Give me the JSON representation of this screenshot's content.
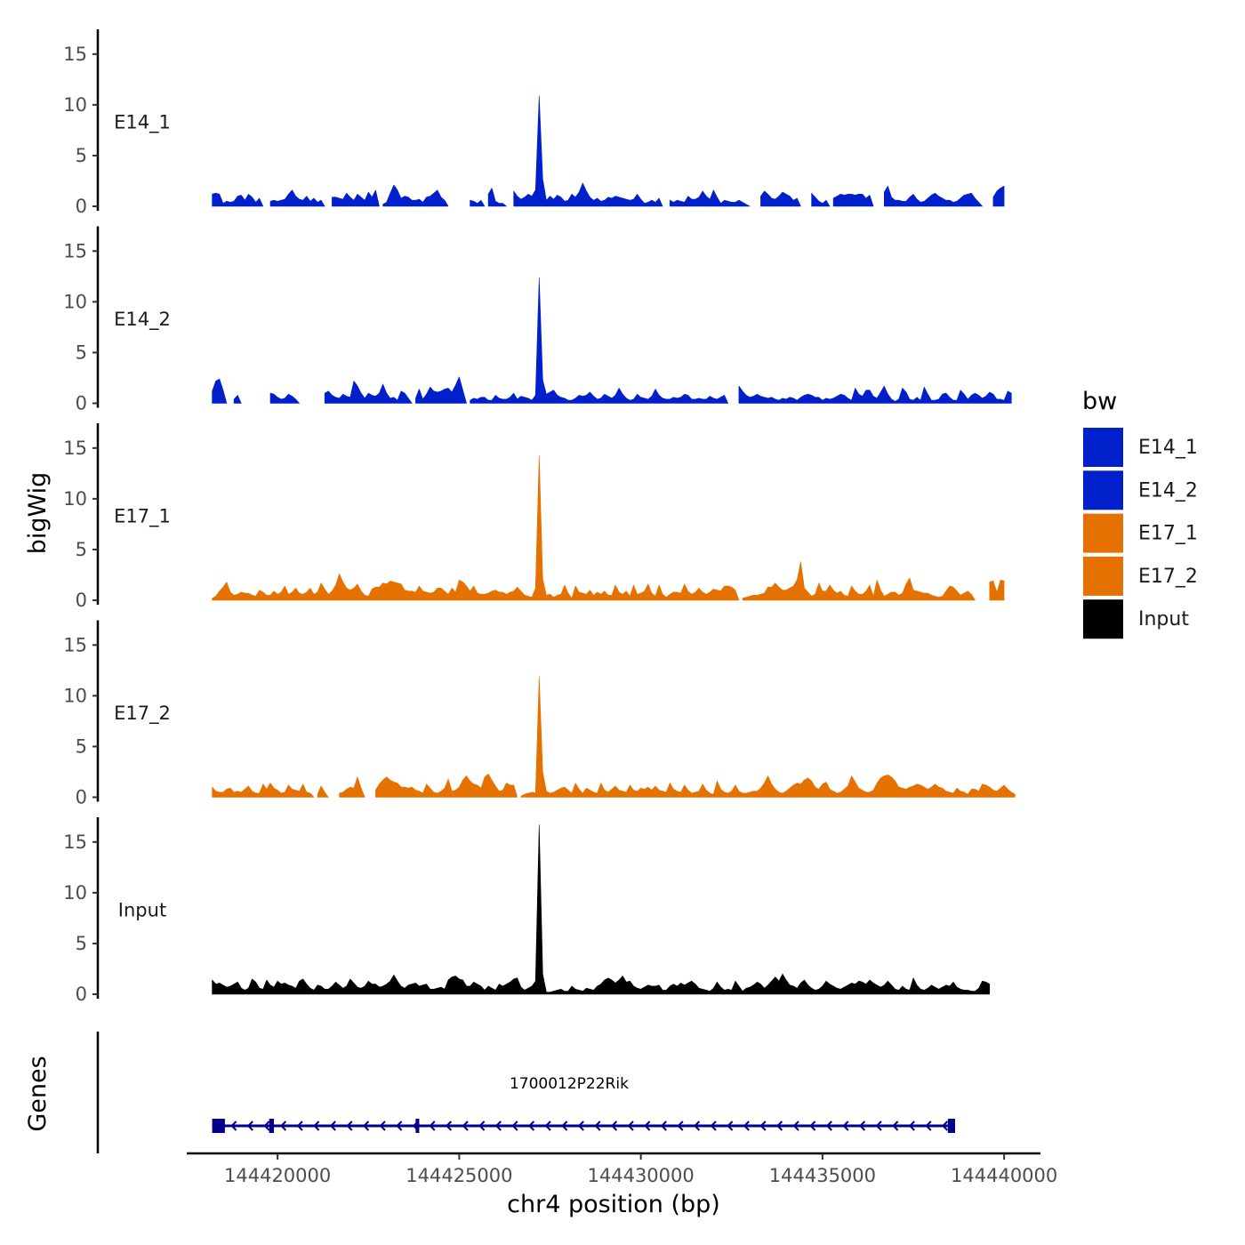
{
  "chart_data": {
    "type": "area",
    "title": "",
    "ylabel": "bigWig",
    "xlabel": "chr4 position (bp)",
    "genes_label": "Genes",
    "xlim": [
      144417500,
      144441000
    ],
    "ylim": [
      0,
      17
    ],
    "x_ticks": [
      144420000,
      144425000,
      144430000,
      144435000,
      144440000
    ],
    "x_tick_labels": [
      "144420000",
      "144425000",
      "144430000",
      "144435000",
      "144440000"
    ],
    "y_ticks": [
      0,
      5,
      10,
      15
    ],
    "y_tick_labels": [
      "0",
      "5",
      "10",
      "15"
    ],
    "x_start": 144418200,
    "bin_bp": 100,
    "series": [
      {
        "name": "E14_1",
        "color": "#0020CC",
        "peak_value": 10.9,
        "values": [
          1.2,
          1.3,
          1.2,
          0.3,
          0.5,
          0.4,
          0.5,
          1.0,
          1.1,
          0.6,
          1.2,
          0.9,
          0.4,
          0.8,
          0,
          0,
          0.5,
          0.6,
          0.5,
          0.6,
          0.7,
          1.2,
          1.6,
          1.0,
          0.7,
          0.6,
          1.0,
          0.5,
          0.8,
          0.4,
          0.6,
          0,
          0,
          0.9,
          0.9,
          0.8,
          0.7,
          1.3,
          0.9,
          0.6,
          1.2,
          0.9,
          0.6,
          1.4,
          0.9,
          1.6,
          0,
          0.2,
          0.4,
          1.3,
          2.1,
          1.6,
          0.8,
          1.0,
          0.9,
          0.6,
          0.6,
          0.7,
          0.4,
          0.9,
          1.0,
          1.3,
          1.6,
          0.9,
          0.6,
          0,
          0,
          0,
          0,
          0,
          0,
          0.6,
          0.5,
          0.3,
          0.6,
          0,
          1.2,
          1.8,
          0.5,
          0.3,
          0.3,
          0,
          0,
          1.5,
          1.0,
          0.7,
          0.9,
          1.2,
          1.0,
          1.6,
          10.9,
          2.7,
          0.6,
          1.0,
          0.7,
          1.1,
          0.9,
          0.5,
          0.6,
          1.2,
          0.9,
          1.4,
          2.3,
          1.5,
          0.9,
          0.6,
          0.8,
          0.5,
          0.6,
          0.9,
          0.8,
          1.0,
          0.9,
          0.8,
          0.7,
          0.6,
          0.7,
          1.2,
          0.7,
          0.3,
          0.4,
          0.6,
          0.4,
          0.8,
          0,
          0,
          0.6,
          0.4,
          0.6,
          0.5,
          0.4,
          1.0,
          0.7,
          0.7,
          0.9,
          1.5,
          1.0,
          0.7,
          1.6,
          0.9,
          0.3,
          0.6,
          0.5,
          0.4,
          0.4,
          0.6,
          0.4,
          0.2,
          0,
          0,
          0,
          1.0,
          1.5,
          1.2,
          0.8,
          0.7,
          1.0,
          1.4,
          1.2,
          1.0,
          0.6,
          0.8,
          0,
          0,
          0,
          1.3,
          0.9,
          0.5,
          0.3,
          0.6,
          0,
          0.8,
          1.0,
          1.2,
          1.1,
          1.2,
          1.2,
          1.1,
          1.2,
          1.2,
          0.8,
          1.1,
          0,
          0,
          0,
          1.4,
          2.0,
          0.9,
          0.6,
          0.6,
          0.5,
          0.5,
          0.9,
          1.2,
          0.7,
          0.4,
          0.5,
          0.8,
          1.1,
          1.3,
          1.0,
          0.8,
          0.6,
          0.6,
          0.4,
          0.5,
          0.8,
          1.1,
          1.2,
          1.3,
          0.8,
          0.4,
          0,
          0,
          0,
          0.9,
          1.5,
          1.8,
          2.0
        ]
      },
      {
        "name": "E14_2",
        "color": "#0020CC",
        "peak_value": 12.4,
        "values": [
          1.2,
          2.2,
          2.4,
          1.3,
          0,
          0,
          0.4,
          0.8,
          0,
          0,
          0,
          0,
          0,
          0,
          0,
          0,
          1.0,
          0.9,
          0.6,
          0.4,
          0.5,
          0.9,
          0.7,
          0.4,
          0,
          0,
          0,
          0,
          0,
          0,
          0,
          1.0,
          1.2,
          0.8,
          0.6,
          0.5,
          0.9,
          0.7,
          0.6,
          2.2,
          1.7,
          1.0,
          0.5,
          1.0,
          0.8,
          0.7,
          1.0,
          1.9,
          1.0,
          0.5,
          0.6,
          0.3,
          1.2,
          1.0,
          0.5,
          0,
          0.5,
          1.4,
          0.4,
          0.9,
          1.6,
          1.2,
          1.1,
          1.2,
          1.4,
          1.5,
          1.1,
          1.8,
          2.6,
          1.3,
          0,
          0.3,
          0.5,
          0.4,
          0.6,
          0.6,
          0.3,
          0.3,
          0.8,
          0.5,
          0.4,
          0.4,
          0.6,
          1.0,
          0.4,
          0.7,
          0.6,
          0.5,
          0.3,
          0.8,
          12.4,
          2.3,
          0.9,
          1.1,
          1.3,
          0.8,
          0.6,
          0.5,
          0.3,
          0.3,
          0.5,
          0.8,
          0.7,
          0.8,
          1.1,
          0.7,
          0.4,
          0.5,
          0.9,
          0.7,
          0.5,
          0.8,
          1.5,
          0.9,
          0.5,
          0.3,
          0.4,
          0.9,
          0.6,
          0.5,
          0.4,
          0.7,
          1.4,
          0.8,
          0.5,
          0.4,
          0.4,
          0.6,
          0.5,
          0.6,
          0.9,
          0.8,
          0.4,
          0.4,
          0.5,
          0.4,
          0.4,
          0.7,
          0.5,
          0.4,
          0.6,
          0.8,
          0,
          0,
          0,
          1.7,
          1.2,
          0.8,
          0.6,
          0.7,
          0.9,
          0.7,
          0.6,
          0.5,
          0.6,
          0.4,
          0.3,
          0.5,
          0.4,
          0.6,
          0.5,
          0.3,
          0.6,
          0.8,
          0.9,
          0.8,
          0.6,
          0.6,
          0.3,
          0.5,
          0.4,
          0.5,
          0.7,
          0.9,
          0.8,
          0.5,
          0.3,
          1.5,
          0.9,
          0.7,
          1.3,
          1.3,
          0.7,
          0.5,
          1.1,
          1.7,
          0.9,
          0.4,
          0.2,
          0.4,
          1.5,
          1.1,
          0.4,
          0.3,
          0.6,
          0.3,
          1.6,
          0.9,
          0.3,
          0.3,
          0.4,
          0.9,
          1.0,
          0.6,
          0.3,
          0.3,
          1.3,
          0.9,
          0.4,
          0.8,
          1.0,
          0.8,
          0.5,
          0.7,
          1.1,
          0.9,
          0.4,
          0.4,
          0.3,
          1.2,
          1.0
        ]
      },
      {
        "name": "E17_1",
        "color": "#E57200",
        "peak_value": 14.3,
        "values": [
          0.2,
          0.4,
          0.9,
          1.3,
          1.8,
          0.8,
          0.5,
          0.6,
          0.8,
          0.7,
          0.7,
          0.5,
          0.4,
          1.0,
          0.8,
          0.5,
          0.5,
          0.9,
          0.6,
          0.8,
          1.4,
          0.6,
          0.8,
          1.2,
          0.7,
          0.6,
          0.8,
          1.2,
          0.6,
          0.8,
          1.7,
          1.1,
          0.6,
          0.9,
          1.5,
          2.6,
          1.8,
          1.2,
          1.0,
          1.2,
          1.6,
          0.9,
          0.5,
          0.4,
          1.1,
          1.3,
          1.3,
          1.7,
          1.6,
          1.9,
          1.8,
          1.7,
          1.6,
          1.0,
          0.9,
          0.9,
          0.8,
          1.4,
          0.9,
          0.8,
          0.7,
          0.8,
          1.2,
          1.2,
          0.9,
          0.6,
          1.2,
          0.8,
          2.0,
          1.8,
          1.4,
          0.9,
          1.4,
          0.7,
          0.6,
          0.6,
          0.7,
          0.9,
          1.0,
          0.8,
          0.8,
          0.6,
          0.8,
          0.9,
          1.3,
          0.9,
          0.5,
          0.4,
          0.3,
          1.2,
          14.3,
          2.1,
          0.5,
          0.6,
          0.3,
          0.5,
          0.6,
          1.5,
          0.7,
          0.2,
          1.4,
          0.8,
          0.7,
          0.6,
          1.0,
          0.5,
          0.8,
          0.6,
          0.9,
          0.5,
          0.5,
          1.5,
          0.8,
          0.6,
          0.9,
          0.4,
          1.5,
          0.6,
          0.7,
          0.9,
          1.6,
          0.7,
          0.4,
          1.5,
          0.6,
          0.3,
          0.6,
          0.8,
          0.8,
          0.7,
          1.6,
          0.9,
          0.6,
          0.8,
          1.2,
          0.8,
          0.6,
          0.8,
          1.1,
          1.0,
          0.9,
          1.4,
          1.4,
          1.3,
          1.0,
          0,
          0.2,
          0.3,
          0.4,
          0.5,
          0.5,
          0.6,
          0.7,
          1.3,
          1.3,
          1.7,
          1.3,
          1.0,
          1.0,
          1.2,
          1.4,
          2.0,
          3.8,
          1.2,
          0.8,
          0.4,
          0.6,
          1.7,
          0.9,
          0.9,
          1.5,
          1.0,
          0.7,
          0.9,
          0.5,
          0.4,
          1.4,
          0.9,
          0.6,
          0.6,
          0.9,
          1.5,
          0.4,
          2.0,
          1.0,
          0.4,
          0.6,
          0.8,
          0.8,
          0.5,
          0.7,
          1.6,
          2.2,
          1.0,
          0.9,
          0.8,
          0.7,
          0.7,
          0.5,
          0.4,
          0.3,
          0.4,
          0.9,
          1.4,
          1.3,
          0.9,
          0.5,
          0.7,
          0.9,
          0.6,
          0,
          0,
          0,
          0,
          1.8,
          1.9,
          0.8,
          2.0,
          1.9
        ]
      },
      {
        "name": "E17_2",
        "color": "#E57200",
        "peak_value": 11.9,
        "values": [
          1.0,
          0.6,
          0.5,
          0.5,
          0.8,
          0.9,
          0.5,
          0.6,
          0.5,
          0.8,
          1.1,
          0.6,
          0.4,
          0.4,
          1.3,
          0.8,
          1.4,
          0.9,
          0.7,
          0.4,
          0.5,
          1.2,
          0.8,
          0.7,
          0.6,
          1.3,
          0.5,
          0.4,
          0,
          0.3,
          1.1,
          0.5,
          0,
          0,
          0,
          0.4,
          0.5,
          0.8,
          1.0,
          0.9,
          2.0,
          0.9,
          0,
          0,
          0,
          0.7,
          1.3,
          1.7,
          2.0,
          1.7,
          1.5,
          1.4,
          1.0,
          1.0,
          0.9,
          1.0,
          0.7,
          0.6,
          0.4,
          1.3,
          0.9,
          0.5,
          0.4,
          0.6,
          0.9,
          1.8,
          0.6,
          0.7,
          1.0,
          1.7,
          2.1,
          1.6,
          1.3,
          1.2,
          0.9,
          2.0,
          2.3,
          1.7,
          1.1,
          0.6,
          0.7,
          1.4,
          1.2,
          1.2,
          0,
          0.1,
          0.3,
          0.4,
          0.5,
          0.4,
          11.9,
          2.5,
          0.6,
          0.4,
          0.5,
          0.7,
          0.9,
          1.0,
          0.7,
          0.4,
          1.4,
          0.8,
          0.4,
          0.9,
          0.7,
          0.5,
          0.4,
          1.4,
          0.7,
          0.5,
          0.8,
          1.1,
          0.7,
          0.6,
          0.5,
          1.2,
          0.7,
          0.6,
          0.9,
          0.8,
          1.0,
          0.7,
          1.1,
          0.7,
          0.6,
          0.5,
          1.4,
          0.8,
          0.6,
          0.5,
          1.2,
          0.7,
          0.4,
          0.5,
          0.6,
          1.3,
          0.7,
          0.4,
          0.3,
          1.6,
          0.8,
          0.5,
          0.4,
          0.6,
          1.2,
          0.6,
          0.4,
          0.4,
          0.5,
          0.6,
          0.6,
          0.9,
          1.4,
          2.1,
          1.3,
          0.8,
          0.5,
          0.4,
          0.6,
          0.9,
          1.2,
          1.4,
          1.3,
          1.7,
          1.9,
          1.6,
          1.0,
          0.8,
          1.3,
          1.5,
          0.8,
          0.6,
          0.4,
          0.5,
          0.8,
          1.1,
          2.1,
          1.5,
          0.9,
          0.7,
          0.5,
          0.5,
          0.7,
          1.4,
          1.9,
          2.1,
          2.2,
          2.0,
          1.6,
          1.0,
          0.9,
          0.8,
          1.0,
          1.1,
          1.3,
          1.2,
          1.0,
          0.8,
          1.0,
          1.3,
          1.0,
          0.9,
          0.6,
          0.5,
          0.4,
          0.9,
          0.6,
          0.5,
          0.3,
          0.8,
          0.8,
          0.6,
          1.3,
          1.2,
          1.0,
          0.7,
          0.6,
          0.9,
          1.2,
          0.8,
          0.5,
          0.3
        ]
      },
      {
        "name": "Input",
        "color": "#000000",
        "peak_value": 16.7,
        "values": [
          1.4,
          1.0,
          1.1,
          0.9,
          0.7,
          0.8,
          1.0,
          1.2,
          0.6,
          0.4,
          0.6,
          1.5,
          1.2,
          0.6,
          0.5,
          1.4,
          0.9,
          0.7,
          1.3,
          1.0,
          1.1,
          0.9,
          0.8,
          0.6,
          1.3,
          1.5,
          1.0,
          0.6,
          0.4,
          0.9,
          0.8,
          0.5,
          0.5,
          0.8,
          1.2,
          0.9,
          0.6,
          0.8,
          1.5,
          1.1,
          0.7,
          0.6,
          0.8,
          1.3,
          1.0,
          1.0,
          0.7,
          0.8,
          1.0,
          1.3,
          1.9,
          1.3,
          0.8,
          0.6,
          0.9,
          1.0,
          1.1,
          0.8,
          0.9,
          1.0,
          0.5,
          0.5,
          0.6,
          0.7,
          0.5,
          1.4,
          1.7,
          1.8,
          1.5,
          1.4,
          0.8,
          0.8,
          1.2,
          1.0,
          0.8,
          0.4,
          0.8,
          0.6,
          0.4,
          1.0,
          0.8,
          1.0,
          1.2,
          1.5,
          1.6,
          0.7,
          0.4,
          0.6,
          0.8,
          1.3,
          16.7,
          2.0,
          0.2,
          0.2,
          0.3,
          0.4,
          0.5,
          0.3,
          0.3,
          0.8,
          0.5,
          0.4,
          0.3,
          0.6,
          0.5,
          0.4,
          0.8,
          1.0,
          1.4,
          1.6,
          1.4,
          1.1,
          1.4,
          1.8,
          1.2,
          1.3,
          0.8,
          0.6,
          0.5,
          0.7,
          0.9,
          0.8,
          0.8,
          0.9,
          0.4,
          0.4,
          0.8,
          1.0,
          0.8,
          1.1,
          0.9,
          1.1,
          1.3,
          1.0,
          0.6,
          0.5,
          0.4,
          0.3,
          0.6,
          1.2,
          0.7,
          0.4,
          0.5,
          0.4,
          1.3,
          0.8,
          0.3,
          0.6,
          0.7,
          0.9,
          1.2,
          1.0,
          0.6,
          0.9,
          1.3,
          1.7,
          1.3,
          2.0,
          1.4,
          0.9,
          0.8,
          0.6,
          1.1,
          1.4,
          0.9,
          0.6,
          0.4,
          0.5,
          0.8,
          1.3,
          1.0,
          0.8,
          0.6,
          0.5,
          0.7,
          0.9,
          1.1,
          1.0,
          1.3,
          1.2,
          1.0,
          1.4,
          1.1,
          0.9,
          0.7,
          0.9,
          1.3,
          0.9,
          0.5,
          0.4,
          0.8,
          0.5,
          0.4,
          1.6,
          0.9,
          0.5,
          0.4,
          0.6,
          0.9,
          0.7,
          0.5,
          0.7,
          0.9,
          0.8,
          1.2,
          0.7,
          0.5,
          0.4,
          0.4,
          0.3,
          0.3,
          0.6,
          1.3,
          1.2,
          1.0
        ]
      }
    ],
    "gene_track": {
      "gene_name": "1700012P22Rik",
      "color": "#00008B",
      "strand": "-",
      "start": 144418200,
      "end": 144438650,
      "exons": [
        [
          144418200,
          144418550
        ],
        [
          144419770,
          144419900
        ],
        [
          144423800,
          144423900
        ],
        [
          144438450,
          144438650
        ]
      ]
    },
    "legend": {
      "title": "bw",
      "position": "right",
      "entries": [
        {
          "label": "E14_1",
          "color": "#0020CC"
        },
        {
          "label": "E14_2",
          "color": "#0020CC"
        },
        {
          "label": "E17_1",
          "color": "#E57200"
        },
        {
          "label": "E17_2",
          "color": "#E57200"
        },
        {
          "label": "Input",
          "color": "#000000"
        }
      ]
    }
  }
}
